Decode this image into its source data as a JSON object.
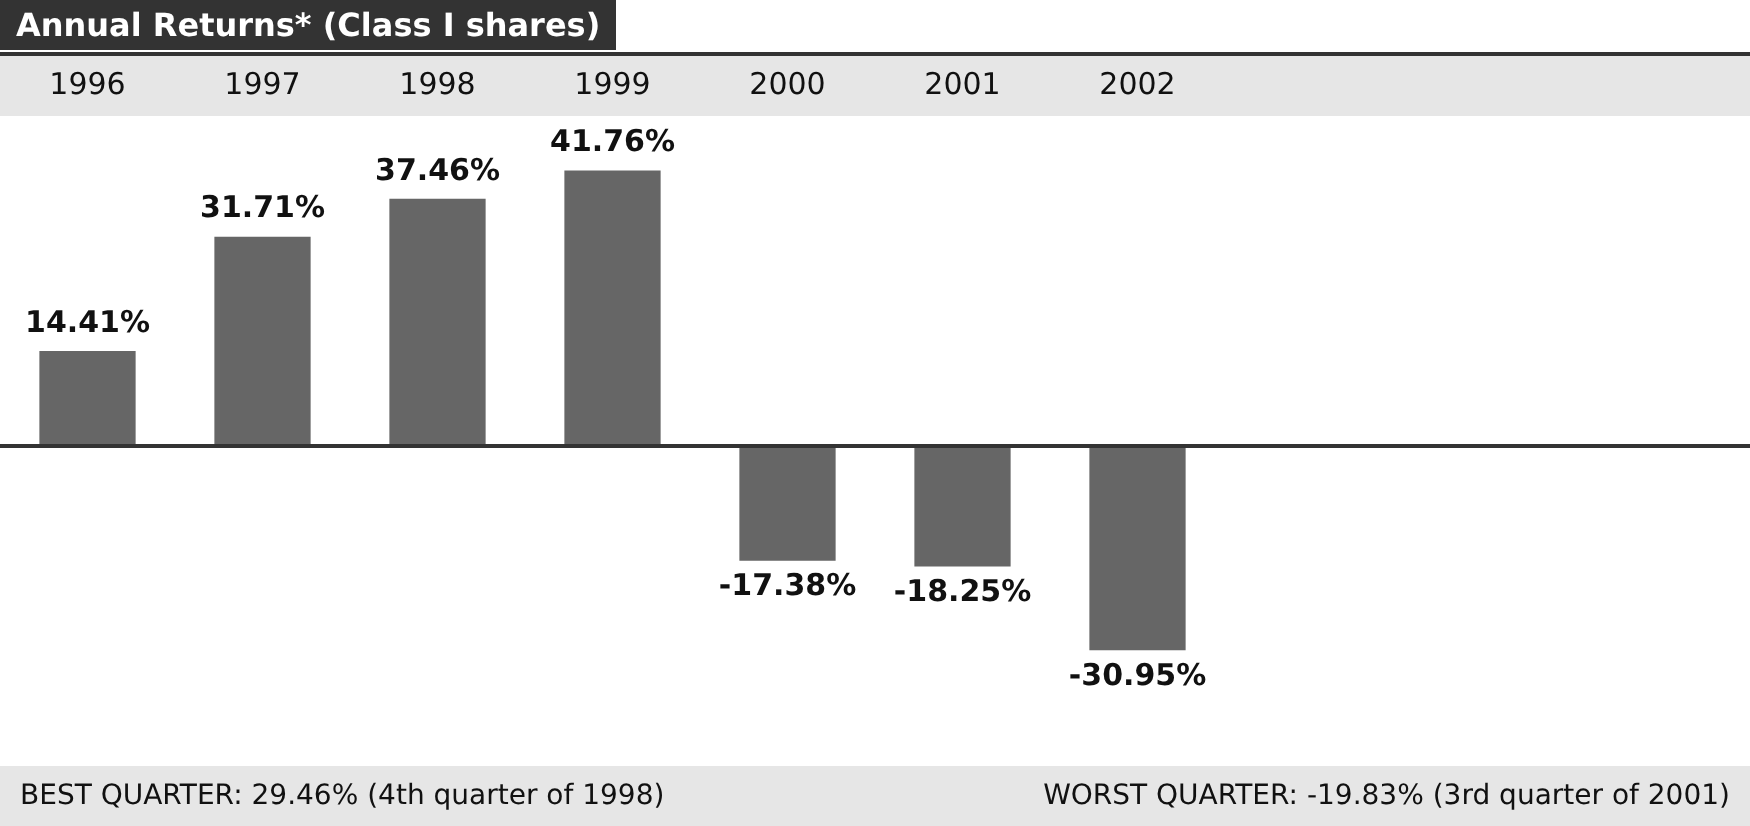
{
  "chart_data": {
    "type": "bar",
    "title": "Annual Returns* (Class I shares)",
    "categories": [
      "1996",
      "1997",
      "1998",
      "1999",
      "2000",
      "2001",
      "2002",
      null,
      null,
      null
    ],
    "values": [
      14.41,
      31.71,
      37.46,
      41.76,
      -17.38,
      -18.25,
      -30.95,
      null,
      null,
      null
    ],
    "value_labels": [
      "14.41%",
      "31.71%",
      "37.46%",
      "41.76%",
      "-17.38%",
      "-18.25%",
      "-30.95%",
      null,
      null,
      null
    ],
    "color": "#666666",
    "annotations": [
      "BEST QUARTER: 29.46% (4th quarter of 1998)",
      "WORST QUARTER: -19.83% (3rd quarter of 2001)"
    ],
    "grid": false,
    "legend": false
  }
}
